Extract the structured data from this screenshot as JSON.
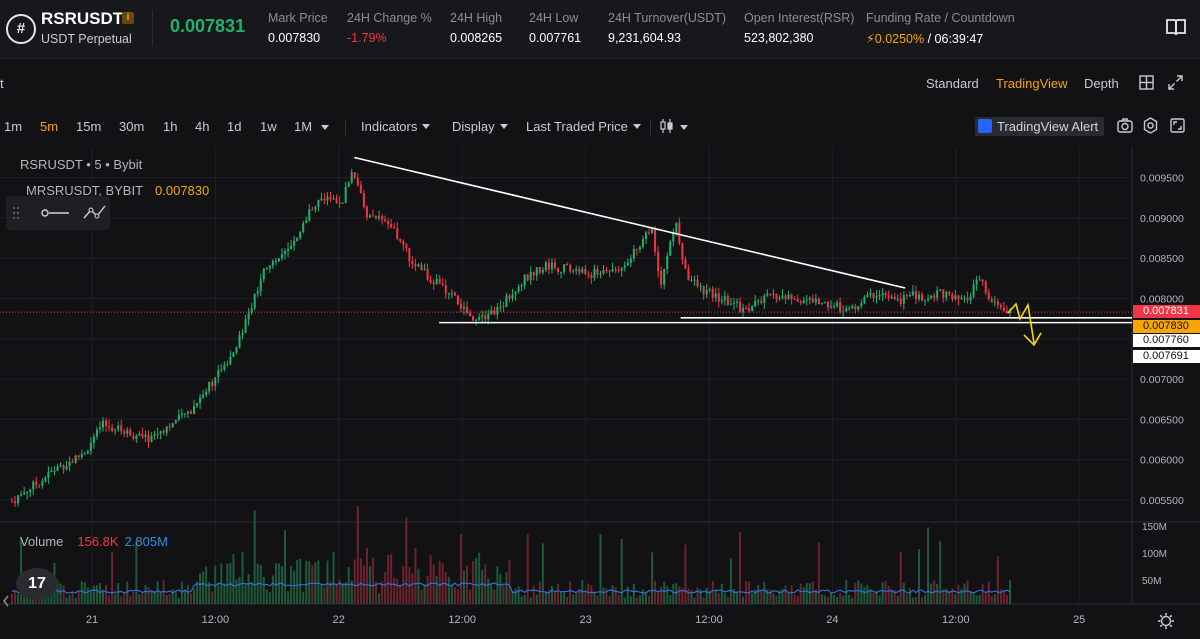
{
  "header": {
    "symbol": "RSRUSDT",
    "info_badge": "i",
    "contract": "USDT Perpetual",
    "last_price": "0.007831",
    "stats": [
      {
        "label": "Mark Price",
        "value": "0.007830"
      },
      {
        "label": "24H Change %",
        "value": "-1.79%"
      },
      {
        "label": "24H High",
        "value": "0.008265"
      },
      {
        "label": "24H Low",
        "value": "0.007761"
      },
      {
        "label": "24H Turnover(USDT)",
        "value": "9,231,604.93"
      },
      {
        "label": "Open Interest(RSR)",
        "value": "523,802,380"
      },
      {
        "label": "Funding Rate / Countdown",
        "value": "0.0250%",
        "value2": " / 06:39:47"
      }
    ]
  },
  "view_tabs": {
    "standard": "Standard",
    "tradingview": "TradingView",
    "depth": "Depth",
    "left_fragment": "t"
  },
  "toolbar": {
    "timeframes": [
      "1m",
      "5m",
      "15m",
      "30m",
      "1h",
      "4h",
      "1d",
      "1w",
      "1M"
    ],
    "active_timeframe": "5m",
    "indicators": "Indicators",
    "display": "Display",
    "price_type": "Last Traded Price",
    "alert": "TradingView Alert"
  },
  "chart": {
    "title": "RSRUSDT • 5 • Bybit",
    "mark_label": "MRSRUSDT, BYBIT",
    "mark_value": "0.007830",
    "volume_label": "Volume",
    "volume_a": "156.8K",
    "volume_b": "2.805M",
    "logo": "17",
    "colors": {
      "up": "#20b26c",
      "down": "#f23645",
      "accent": "#f7a600",
      "bg": "#121214"
    }
  },
  "chart_data": {
    "type": "candlestick",
    "symbol": "RSRUSDT",
    "interval": "5",
    "exchange": "Bybit",
    "y_axis_ticks": [
      "0.009500",
      "0.009000",
      "0.008500",
      "0.008000",
      "0.007500",
      "0.007000",
      "0.006500",
      "0.006000",
      "0.005500"
    ],
    "y_range": [
      0.00525,
      0.00988
    ],
    "price_tags": [
      {
        "value": "0.007831",
        "style": "red"
      },
      {
        "value": "0.007830",
        "style": "orange"
      },
      {
        "value": "0.007760",
        "style": "white"
      },
      {
        "value": "0.007691",
        "style": "white"
      }
    ],
    "x_axis_ticks": [
      "21",
      "12:00",
      "22",
      "12:00",
      "23",
      "12:00",
      "24",
      "12:00",
      "25"
    ],
    "volume_axis_ticks": [
      "150M",
      "100M",
      "50M"
    ],
    "price_path": [
      [
        0,
        0.00548
      ],
      [
        0.015,
        0.00562
      ],
      [
        0.03,
        0.00575
      ],
      [
        0.045,
        0.0059
      ],
      [
        0.06,
        0.00598
      ],
      [
        0.075,
        0.00612
      ],
      [
        0.09,
        0.00643
      ],
      [
        0.105,
        0.00638
      ],
      [
        0.12,
        0.00632
      ],
      [
        0.135,
        0.00625
      ],
      [
        0.15,
        0.00637
      ],
      [
        0.165,
        0.00648
      ],
      [
        0.18,
        0.00662
      ],
      [
        0.195,
        0.0069
      ],
      [
        0.21,
        0.0071
      ],
      [
        0.225,
        0.00745
      ],
      [
        0.24,
        0.0079
      ],
      [
        0.255,
        0.0084
      ],
      [
        0.27,
        0.00852
      ],
      [
        0.285,
        0.0087
      ],
      [
        0.3,
        0.00915
      ],
      [
        0.315,
        0.00925
      ],
      [
        0.33,
        0.00918
      ],
      [
        0.342,
        0.0096
      ],
      [
        0.355,
        0.00905
      ],
      [
        0.37,
        0.00895
      ],
      [
        0.385,
        0.0088
      ],
      [
        0.4,
        0.00848
      ],
      [
        0.415,
        0.0083
      ],
      [
        0.43,
        0.00815
      ],
      [
        0.445,
        0.00798
      ],
      [
        0.46,
        0.00777
      ],
      [
        0.475,
        0.0078
      ],
      [
        0.49,
        0.0079
      ],
      [
        0.505,
        0.00815
      ],
      [
        0.52,
        0.0083
      ],
      [
        0.535,
        0.00842
      ],
      [
        0.55,
        0.00838
      ],
      [
        0.565,
        0.00835
      ],
      [
        0.58,
        0.0083
      ],
      [
        0.595,
        0.00835
      ],
      [
        0.61,
        0.0084
      ],
      [
        0.625,
        0.0086
      ],
      [
        0.64,
        0.0089
      ],
      [
        0.65,
        0.0082
      ],
      [
        0.665,
        0.00895
      ],
      [
        0.675,
        0.0083
      ],
      [
        0.69,
        0.00812
      ],
      [
        0.705,
        0.00802
      ],
      [
        0.72,
        0.00795
      ],
      [
        0.735,
        0.00785
      ],
      [
        0.75,
        0.00798
      ],
      [
        0.765,
        0.00803
      ],
      [
        0.78,
        0.008
      ],
      [
        0.8,
        0.00797
      ],
      [
        0.82,
        0.00793
      ],
      [
        0.84,
        0.00785
      ],
      [
        0.855,
        0.008
      ],
      [
        0.87,
        0.00808
      ],
      [
        0.885,
        0.00795
      ],
      [
        0.9,
        0.00805
      ],
      [
        0.915,
        0.00798
      ],
      [
        0.93,
        0.0081
      ],
      [
        0.94,
        0.008
      ],
      [
        0.955,
        0.00795
      ],
      [
        0.97,
        0.00825
      ],
      [
        0.98,
        0.00795
      ],
      [
        1.0,
        0.00783
      ]
    ],
    "annotations": [
      {
        "type": "trendline",
        "from": [
          0.343,
          0.00975
        ],
        "to": [
          0.895,
          0.00813
        ]
      },
      {
        "type": "hline",
        "from": [
          0.428,
          0.0077
        ],
        "to": [
          1.0,
          0.0077
        ]
      },
      {
        "type": "hline",
        "from": [
          0.67,
          0.00776
        ],
        "to": [
          1.0,
          0.00776
        ]
      }
    ]
  }
}
